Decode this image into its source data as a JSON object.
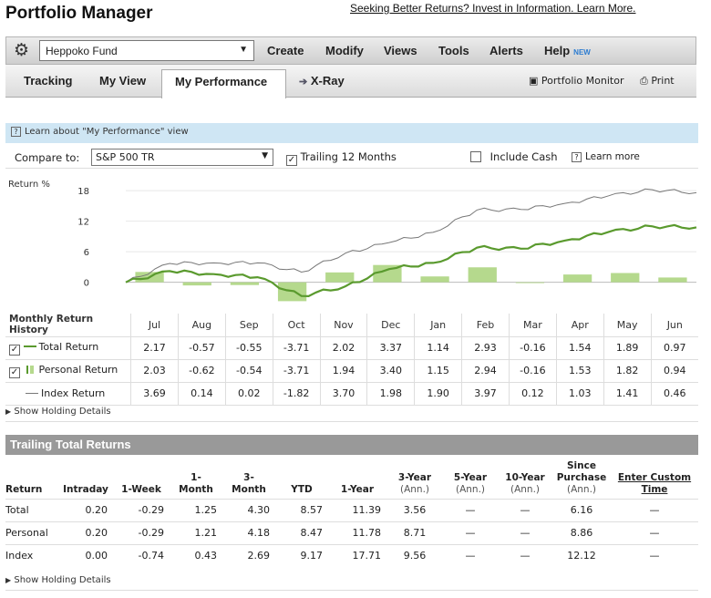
{
  "app": {
    "title": "Portfolio Manager",
    "promo": "Seeking Better Returns? Invest in Information. Learn More."
  },
  "menu": {
    "fund": "Heppoko Fund",
    "items": [
      "Create",
      "Modify",
      "Views",
      "Tools",
      "Alerts",
      "Help"
    ],
    "help_badge": "NEW"
  },
  "tabs": {
    "items": [
      "Tracking",
      "My View",
      "My Performance",
      "X-Ray"
    ],
    "active": "My Performance",
    "portfolio_monitor": "Portfolio Monitor",
    "print": "Print"
  },
  "learn_bar": "Learn about \"My Performance\" view",
  "compare": {
    "label": "Compare to:",
    "benchmark": "S&P 500 TR",
    "trailing": "Trailing 12 Months",
    "trailing_checked": true,
    "include_cash": "Include Cash",
    "include_cash_checked": false,
    "learn_more": "Learn more"
  },
  "chart_data": {
    "type": "line",
    "ylabel": "Return %",
    "yticks": [
      18,
      12,
      6,
      0
    ],
    "ylim": [
      -4,
      20
    ],
    "series": [
      {
        "name": "Total Return",
        "color": "#5a9a2e",
        "values": [
          0,
          2.2,
          1.6,
          1.0,
          -2.7,
          -0.8,
          2.6,
          3.8,
          6.8,
          6.6,
          8.2,
          9.9,
          11.0,
          10.8
        ]
      },
      {
        "name": "Index Return",
        "color": "#777777",
        "values": [
          0,
          3.7,
          3.8,
          3.8,
          2.0,
          5.7,
          7.8,
          9.8,
          14.2,
          14.3,
          15.5,
          17.0,
          18.2,
          17.6
        ]
      }
    ],
    "bars": {
      "name": "Personal Return",
      "color": "#b5d98d",
      "values": [
        2.03,
        -0.62,
        -0.54,
        -3.71,
        1.94,
        3.4,
        1.15,
        2.94,
        -0.16,
        1.53,
        1.82,
        0.94
      ]
    }
  },
  "monthly": {
    "title": "Monthly Return History",
    "months": [
      "Jul",
      "Aug",
      "Sep",
      "Oct",
      "Nov",
      "Dec",
      "Jan",
      "Feb",
      "Mar",
      "Apr",
      "May",
      "Jun"
    ],
    "rows": [
      {
        "label": "Total Return",
        "checked": true,
        "values": [
          "2.17",
          "-0.57",
          "-0.55",
          "-3.71",
          "2.02",
          "3.37",
          "1.14",
          "2.93",
          "-0.16",
          "1.54",
          "1.89",
          "0.97"
        ]
      },
      {
        "label": "Personal Return",
        "checked": true,
        "values": [
          "2.03",
          "-0.62",
          "-0.54",
          "-3.71",
          "1.94",
          "3.40",
          "1.15",
          "2.94",
          "-0.16",
          "1.53",
          "1.82",
          "0.94"
        ]
      },
      {
        "label": "Index Return",
        "checked": false,
        "values": [
          "3.69",
          "0.14",
          "0.02",
          "-1.82",
          "3.70",
          "1.98",
          "1.90",
          "3.97",
          "0.12",
          "1.03",
          "1.41",
          "0.46"
        ]
      }
    ]
  },
  "show_holding": "Show Holding Details",
  "trailing": {
    "title": "Trailing Total Returns",
    "headers": [
      {
        "l1": "Return",
        "l2": ""
      },
      {
        "l1": "Intraday",
        "l2": ""
      },
      {
        "l1": "1-Week",
        "l2": ""
      },
      {
        "l1": "1-",
        "l2": "Month"
      },
      {
        "l1": "3-",
        "l2": "Month"
      },
      {
        "l1": "YTD",
        "l2": ""
      },
      {
        "l1": "1-Year",
        "l2": ""
      },
      {
        "l1": "3-Year",
        "l2": "(Ann.)"
      },
      {
        "l1": "5-Year",
        "l2": "(Ann.)"
      },
      {
        "l1": "10-Year",
        "l2": "(Ann.)"
      },
      {
        "l1": "Since Purchase",
        "l2": "(Ann.)"
      },
      {
        "l1": "Enter Custom Time",
        "l2": ""
      }
    ],
    "rows": [
      {
        "label": "Total",
        "values": [
          "0.20",
          "-0.29",
          "1.25",
          "4.30",
          "8.57",
          "11.39",
          "3.56",
          "—",
          "—",
          "6.16",
          "—"
        ]
      },
      {
        "label": "Personal",
        "values": [
          "0.20",
          "-0.29",
          "1.21",
          "4.18",
          "8.47",
          "11.78",
          "8.71",
          "—",
          "—",
          "8.86",
          "—"
        ]
      },
      {
        "label": "Index",
        "values": [
          "0.00",
          "-0.74",
          "0.43",
          "2.69",
          "9.17",
          "17.71",
          "9.56",
          "—",
          "—",
          "12.12",
          "—"
        ]
      }
    ]
  }
}
